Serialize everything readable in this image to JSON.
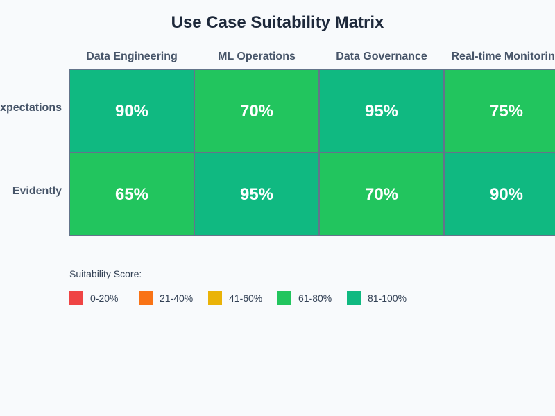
{
  "chart_data": {
    "type": "heatmap",
    "title": "Use Case Suitability Matrix",
    "columns": [
      "Data Engineering",
      "ML Operations",
      "Data Governance",
      "Real-time Monitoring"
    ],
    "rows": [
      "Great Expectations",
      "Evidently"
    ],
    "values": [
      [
        90,
        70,
        95,
        75
      ],
      [
        65,
        95,
        70,
        90
      ]
    ],
    "value_suffix": "%",
    "legend": {
      "title": "Suitability Score:",
      "placement": "bottom-left",
      "items": [
        {
          "label": "0-20%",
          "min": 0,
          "max": 20,
          "color": "#ef4444"
        },
        {
          "label": "21-40%",
          "min": 21,
          "max": 40,
          "color": "#f97316"
        },
        {
          "label": "41-60%",
          "min": 41,
          "max": 60,
          "color": "#eab308"
        },
        {
          "label": "61-80%",
          "min": 61,
          "max": 80,
          "color": "#22c55e"
        },
        {
          "label": "81-100%",
          "min": 81,
          "max": 100,
          "color": "#10b981"
        }
      ]
    }
  }
}
